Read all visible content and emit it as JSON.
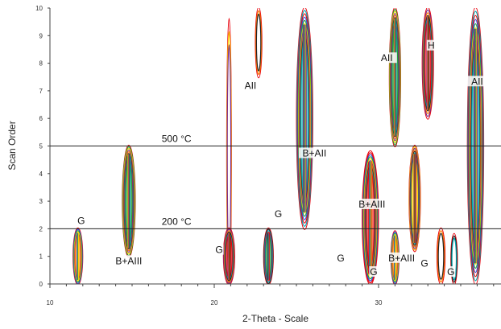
{
  "chart_data": {
    "type": "heatmap",
    "xlabel": "2-Theta - Scale",
    "ylabel": "Scan Order",
    "xlim": [
      10,
      37.5
    ],
    "ylim": [
      0,
      10
    ],
    "x_ticks": [
      10,
      20,
      30
    ],
    "y_ticks": [
      0,
      1,
      2,
      3,
      4,
      5,
      6,
      7,
      8,
      9,
      10
    ],
    "grid": false,
    "palette": [
      "#e8000b",
      "#2f4fd8",
      "#1f9e3b",
      "#ffd400",
      "#7a2c8c",
      "#ff7a00",
      "#222222",
      "#00a3b0"
    ],
    "reference_lines": [
      {
        "y": 2,
        "label": "200 °C"
      },
      {
        "y": 5,
        "label": "500 °C"
      }
    ],
    "peaks": [
      {
        "x": 11.7,
        "y_from": 0.0,
        "y_to": 2.0,
        "width": 0.5,
        "intensity": "medium"
      },
      {
        "x": 14.8,
        "y_from": 1.0,
        "y_to": 5.0,
        "width": 0.7,
        "intensity": "high"
      },
      {
        "x": 20.9,
        "y_from": 0.0,
        "y_to": 9.6,
        "width": 0.2,
        "intensity": "low"
      },
      {
        "x": 20.9,
        "y_from": 0.0,
        "y_to": 2.0,
        "width": 0.6,
        "intensity": "medium"
      },
      {
        "x": 22.7,
        "y_from": 7.5,
        "y_to": 10.0,
        "width": 0.3,
        "intensity": "low"
      },
      {
        "x": 23.3,
        "y_from": 0.0,
        "y_to": 2.0,
        "width": 0.5,
        "intensity": "medium"
      },
      {
        "x": 25.5,
        "y_from": 2.0,
        "y_to": 10.0,
        "width": 0.9,
        "intensity": "high"
      },
      {
        "x": 29.5,
        "y_from": 0.0,
        "y_to": 4.8,
        "width": 0.9,
        "intensity": "high"
      },
      {
        "x": 31.0,
        "y_from": 0.0,
        "y_to": 1.9,
        "width": 0.4,
        "intensity": "medium"
      },
      {
        "x": 31.0,
        "y_from": 5.0,
        "y_to": 10.0,
        "width": 0.6,
        "intensity": "high"
      },
      {
        "x": 32.2,
        "y_from": 1.2,
        "y_to": 5.0,
        "width": 0.6,
        "intensity": "high"
      },
      {
        "x": 33.0,
        "y_from": 6.0,
        "y_to": 10.0,
        "width": 0.6,
        "intensity": "medium"
      },
      {
        "x": 33.8,
        "y_from": 0.0,
        "y_to": 2.0,
        "width": 0.4,
        "intensity": "low"
      },
      {
        "x": 34.6,
        "y_from": 0.0,
        "y_to": 1.8,
        "width": 0.3,
        "intensity": "low"
      },
      {
        "x": 35.9,
        "y_from": 0.0,
        "y_to": 10.0,
        "width": 0.9,
        "intensity": "high"
      }
    ],
    "annotations": [
      {
        "text": "G",
        "x": 11.9,
        "y": 2.2
      },
      {
        "text": "B+AIII",
        "x": 14.8,
        "y": 0.75
      },
      {
        "text": "G",
        "x": 20.3,
        "y": 1.15
      },
      {
        "text": "AII",
        "x": 22.2,
        "y": 7.1
      },
      {
        "text": "G",
        "x": 23.9,
        "y": 2.45
      },
      {
        "text": "B+AII",
        "x": 26.1,
        "y": 4.65
      },
      {
        "text": "B+AIII",
        "x": 29.6,
        "y": 2.8
      },
      {
        "text": "G",
        "x": 27.7,
        "y": 0.85
      },
      {
        "text": "G",
        "x": 29.7,
        "y": 0.35
      },
      {
        "text": "B+AIII",
        "x": 31.4,
        "y": 0.85
      },
      {
        "text": "G",
        "x": 32.8,
        "y": 0.65
      },
      {
        "text": "G",
        "x": 34.4,
        "y": 0.35
      },
      {
        "text": "AII",
        "x": 30.5,
        "y": 8.1
      },
      {
        "text": "H",
        "x": 33.2,
        "y": 8.55
      },
      {
        "text": "AII",
        "x": 36.0,
        "y": 7.25
      }
    ]
  }
}
